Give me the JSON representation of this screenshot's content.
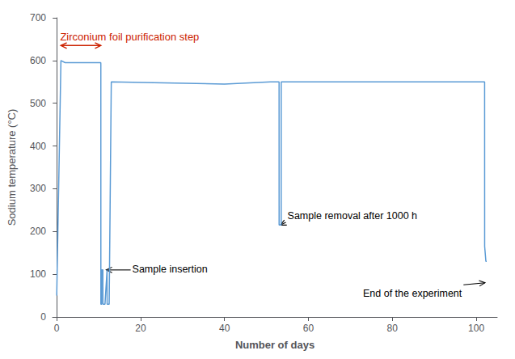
{
  "chart_data": {
    "type": "line",
    "x": [
      0,
      0.1,
      1.0,
      1.01,
      2.0,
      10.5,
      10.51,
      10.52,
      10.7,
      10.71,
      11.0,
      11.01,
      11.5,
      12.0,
      12.01,
      12.5,
      13.0,
      40.0,
      51.0,
      53.0,
      53.01,
      53.5,
      53.51,
      54.2,
      55.0,
      80.0,
      101.5,
      102.0,
      102.01,
      102.3,
      102.5
    ],
    "values": [
      50,
      110,
      600,
      600,
      595,
      595,
      590,
      30,
      30,
      110,
      110,
      30,
      30,
      110,
      30,
      30,
      550,
      545,
      550,
      550,
      215,
      215,
      550,
      550,
      550,
      550,
      550,
      550,
      165,
      130,
      130
    ],
    "color": "#5b9bd5",
    "xlabel": "Number of days",
    "ylabel": "Sodium temperature (°C)",
    "xlim": [
      -1,
      105
    ],
    "ylim": [
      0,
      700
    ],
    "xticks": [
      0,
      20,
      40,
      60,
      80,
      100
    ],
    "yticks": [
      0,
      100,
      200,
      300,
      400,
      500,
      600,
      700
    ],
    "grid": false,
    "annotations": [
      {
        "text": "Sample insertion",
        "xy": [
          11.8,
          110
        ],
        "xytext": [
          18,
          100
        ]
      },
      {
        "text": "Sample removal after 1000 h",
        "xy": [
          53.3,
          215
        ],
        "xytext": [
          55,
          225
        ]
      },
      {
        "text": "End of the experiment",
        "xy": [
          102.1,
          80
        ],
        "xytext": [
          73,
          43
        ]
      },
      {
        "text": "Zirconium foil purification step",
        "color": "#cc2200",
        "x": [
          1.0,
          10.5
        ],
        "y": 635
      }
    ]
  }
}
